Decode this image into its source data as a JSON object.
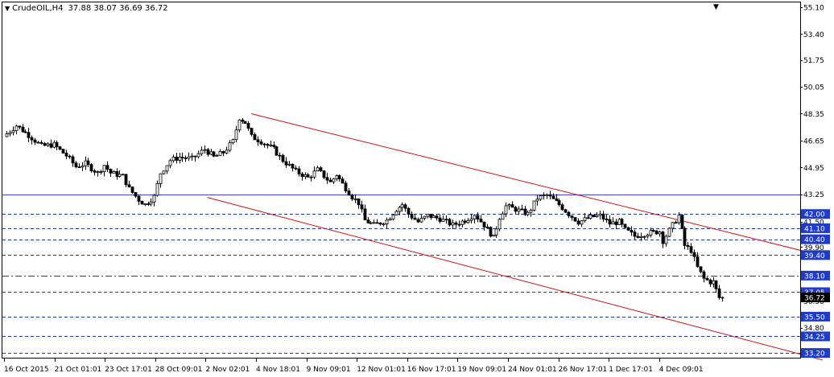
{
  "header": {
    "symbol": "CrudeOIL,H4",
    "ohlc": "37.88 38.07 36.69 36.72",
    "menu_icon": "triangle-down-icon",
    "scroll_icon": "triangle-down-icon"
  },
  "price_axis": {
    "ticks": [
      "55.10",
      "53.40",
      "51.75",
      "50.05",
      "48.35",
      "46.65",
      "44.95",
      "43.25",
      "41.50",
      "39.90",
      "38.10",
      "36.50",
      "34.80",
      "33.20"
    ]
  },
  "time_axis": {
    "labels": [
      "16 Oct 2015",
      "21 Oct 01:01",
      "23 Oct 17:01",
      "28 Oct 09:01",
      "2 Nov 02:01",
      "4 Nov 18:01",
      "9 Nov 09:01",
      "12 Nov 01:01",
      "16 Nov 17:01",
      "19 Nov 09:01",
      "24 Nov 01:01",
      "26 Nov 17:01",
      "1 Dec 17:01",
      "4 Dec 09:01"
    ]
  },
  "levels": [
    {
      "price": 43.25,
      "label": "43.25",
      "style": "solid",
      "color": "#4040c0",
      "highlight": false
    },
    {
      "price": 42.0,
      "label": "42.00",
      "style": "dashed",
      "color": "#2040a0",
      "highlight": true
    },
    {
      "price": 41.1,
      "label": "41.10",
      "style": "dashed",
      "color": "#2040a0",
      "highlight": true
    },
    {
      "price": 40.4,
      "label": "40.40",
      "style": "dashed",
      "color": "#2040a0",
      "highlight": true
    },
    {
      "price": 39.4,
      "label": "39.40",
      "style": "dashed",
      "color": "#2040a0",
      "highlight": true
    },
    {
      "price": 38.1,
      "label": "38.10",
      "style": "dashdot",
      "color": "#2040a0",
      "highlight": true
    },
    {
      "price": 37.05,
      "label": "37.05",
      "style": "dashed",
      "color": "#2040a0",
      "highlight": true
    },
    {
      "price": 35.5,
      "label": "35.50",
      "style": "dashed",
      "color": "#2040a0",
      "highlight": true
    },
    {
      "price": 34.25,
      "label": "34.25",
      "style": "dashed",
      "color": "#2040a0",
      "highlight": true
    },
    {
      "price": 33.2,
      "label": "33.20",
      "style": "dashed",
      "color": "#2040a0",
      "highlight": true
    }
  ],
  "current_price": {
    "price": 36.72,
    "label": "36.72"
  },
  "channel": {
    "color": "#d01010",
    "upper": {
      "start": {
        "bar": 78,
        "price": 48.35
      },
      "end": {
        "bar": 260,
        "price": 39.35
      }
    },
    "lower": {
      "start": {
        "bar": 64,
        "price": 43.05
      },
      "end": {
        "bar": 260,
        "price": 32.75
      }
    }
  },
  "colors": {
    "bull": "#ffffff",
    "bear": "#000000",
    "wick": "#000000"
  },
  "chart_data": {
    "type": "candlestick",
    "symbol": "CrudeOIL",
    "timeframe": "H4",
    "ylim": [
      32.9,
      55.4
    ],
    "path": [
      [
        0,
        46.9
      ],
      [
        4,
        47.6
      ],
      [
        8,
        47.0
      ],
      [
        12,
        46.3
      ],
      [
        16,
        46.4
      ],
      [
        20,
        45.7
      ],
      [
        23,
        45.0
      ],
      [
        26,
        45.2
      ],
      [
        30,
        44.6
      ],
      [
        32,
        45.1
      ],
      [
        34,
        44.6
      ],
      [
        38,
        44.4
      ],
      [
        40,
        43.6
      ],
      [
        43,
        42.9
      ],
      [
        45,
        42.6
      ],
      [
        48,
        43.1
      ],
      [
        50,
        44.6
      ],
      [
        53,
        45.4
      ],
      [
        56,
        45.6
      ],
      [
        60,
        45.5
      ],
      [
        64,
        46.1
      ],
      [
        67,
        45.6
      ],
      [
        70,
        45.9
      ],
      [
        73,
        46.6
      ],
      [
        75,
        48.1
      ],
      [
        77,
        47.8
      ],
      [
        79,
        46.9
      ],
      [
        82,
        46.6
      ],
      [
        86,
        46.1
      ],
      [
        89,
        45.4
      ],
      [
        93,
        44.7
      ],
      [
        97,
        44.3
      ],
      [
        100,
        44.8
      ],
      [
        104,
        44.0
      ],
      [
        106,
        44.5
      ],
      [
        108,
        43.9
      ],
      [
        111,
        43.1
      ],
      [
        113,
        42.7
      ],
      [
        115,
        41.6
      ],
      [
        118,
        41.3
      ],
      [
        122,
        41.6
      ],
      [
        125,
        42.3
      ],
      [
        127,
        42.6
      ],
      [
        129,
        42.0
      ],
      [
        132,
        41.5
      ],
      [
        135,
        41.9
      ],
      [
        139,
        41.7
      ],
      [
        143,
        41.3
      ],
      [
        147,
        41.6
      ],
      [
        150,
        42.0
      ],
      [
        153,
        41.3
      ],
      [
        156,
        40.5
      ],
      [
        158,
        41.8
      ],
      [
        160,
        42.5
      ],
      [
        163,
        42.3
      ],
      [
        167,
        42.0
      ],
      [
        170,
        43.0
      ],
      [
        173,
        43.2
      ],
      [
        177,
        42.6
      ],
      [
        180,
        42.0
      ],
      [
        183,
        41.5
      ],
      [
        187,
        41.8
      ],
      [
        190,
        41.9
      ],
      [
        193,
        41.4
      ],
      [
        196,
        41.5
      ],
      [
        198,
        41.0
      ],
      [
        201,
        40.6
      ],
      [
        205,
        40.8
      ],
      [
        209,
        40.9
      ],
      [
        210,
        40.3
      ],
      [
        213,
        41.3
      ],
      [
        215,
        41.9
      ],
      [
        217,
        40.0
      ],
      [
        219,
        39.7
      ],
      [
        221,
        38.6
      ],
      [
        223,
        37.9
      ],
      [
        225,
        37.7
      ],
      [
        226,
        37.7
      ],
      [
        228,
        36.7
      ]
    ],
    "bars_shown": 229
  }
}
